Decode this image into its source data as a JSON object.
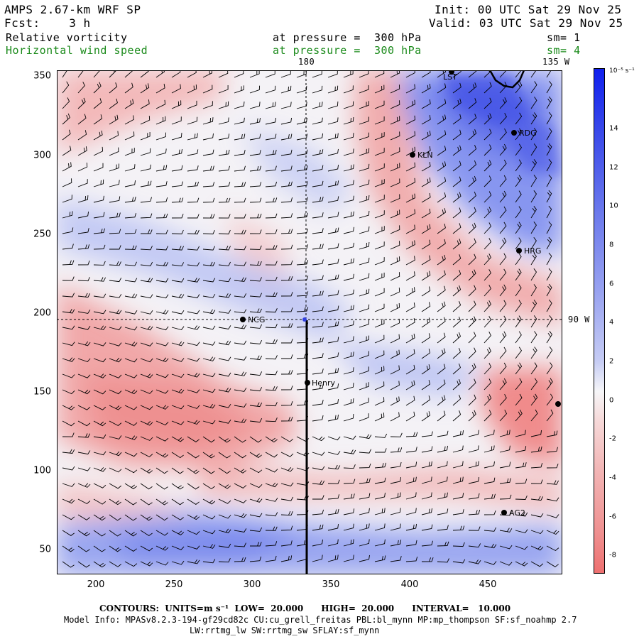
{
  "header": {
    "model": "AMPS 2.67-km WRF SP",
    "fcst": "Fcst:    3 h",
    "init": "Init: 00 UTC Sat 29 Nov 25",
    "valid": "Valid: 03 UTC Sat 29 Nov 25",
    "field1_name": "Relative vorticity",
    "field1_level": "at pressure =  300 hPa",
    "field1_sm": "sm= 1",
    "field2_name": "Horizontal wind speed",
    "field2_level": "at pressure =  300 hPa",
    "field2_sm": "sm= 4"
  },
  "map": {
    "meridian_label": "180",
    "corner_label": "135 W",
    "parallel_label": "90 W",
    "x_ticks": [
      "200",
      "250",
      "300",
      "350",
      "400",
      "450"
    ],
    "y_ticks": [
      "350",
      "300",
      "250",
      "200",
      "150",
      "100",
      "50"
    ],
    "stations": [
      {
        "name": "LST"
      },
      {
        "name": "RDG"
      },
      {
        "name": "KLN"
      },
      {
        "name": "HRG"
      },
      {
        "name": "NCG"
      },
      {
        "name": "Henry"
      },
      {
        "name": "AG2"
      }
    ]
  },
  "colorbar": {
    "unit_label": "10⁻⁵ s⁻¹",
    "ticks": [
      "14",
      "12",
      "10",
      "8",
      "6",
      "4",
      "2",
      "0",
      "-2",
      "-4",
      "-6",
      "-8"
    ],
    "positive_color": "#1e2ef0",
    "negative_color": "#f05a5a"
  },
  "footer": {
    "contours": "CONTOURS:  UNITS=m s⁻¹  LOW=  20.000      HIGH=  20.000      INTERVAL=   10.000",
    "model_info": "Model Info: MPASv8.2.3-194-gf29cd82c CU:cu_grell_freitas PBL:bl_mynn MP:mp_thompson SF:sf_noahmp 2.7",
    "model_info2": "LW:rrtmg_lw SW:rrtmg_sw SFLAY:sf_mynn"
  }
}
